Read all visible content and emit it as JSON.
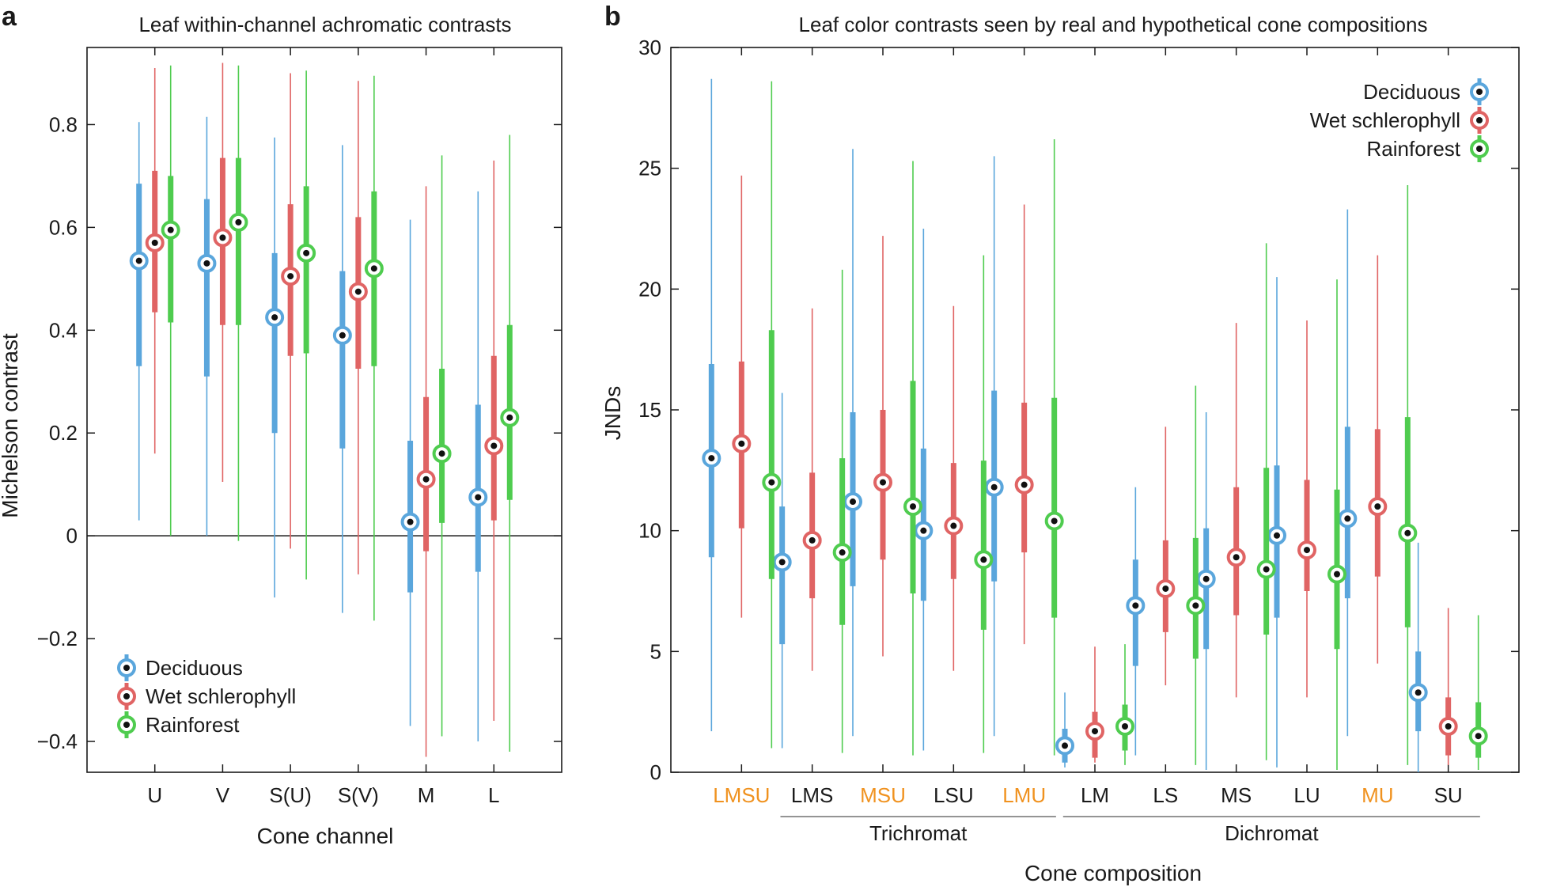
{
  "panels": {
    "a": "a",
    "b": "b"
  },
  "colors": {
    "Deciduous": "#5aa6dc",
    "Wet schlerophyll": "#e06464",
    "Rainforest": "#4fcc4f",
    "orange_label": "#f0921f"
  },
  "chart_data": [
    {
      "type": "box",
      "panel": "a",
      "title": "Leaf within-channel achromatic contrasts",
      "xlabel": "Cone channel",
      "ylabel": "Michelson contrast",
      "ylim": [
        -0.46,
        0.95
      ],
      "yticks": [
        -0.4,
        -0.2,
        0,
        0.2,
        0.4,
        0.6,
        0.8
      ],
      "ytick_labels": [
        "−0.4",
        "−0.2",
        "0",
        "0.2",
        "0.4",
        "0.6",
        "0.8"
      ],
      "zero_line": true,
      "categories": [
        "U",
        "V",
        "S(U)",
        "S(V)",
        "M",
        "L"
      ],
      "legend": {
        "position": "bottom-left",
        "entries": [
          "Deciduous",
          "Wet schlerophyll",
          "Rainforest"
        ]
      },
      "series": [
        {
          "name": "Deciduous",
          "median": [
            0.535,
            0.53,
            0.425,
            0.39,
            0.027,
            0.075
          ],
          "q1": [
            0.33,
            0.31,
            0.2,
            0.17,
            -0.11,
            -0.07
          ],
          "q3": [
            0.685,
            0.655,
            0.55,
            0.515,
            0.185,
            0.255
          ],
          "min": [
            0.03,
            0.0,
            -0.12,
            -0.15,
            -0.37,
            -0.4
          ],
          "max": [
            0.805,
            0.815,
            0.775,
            0.76,
            0.615,
            0.67
          ]
        },
        {
          "name": "Wet schlerophyll",
          "median": [
            0.57,
            0.58,
            0.505,
            0.475,
            0.11,
            0.175
          ],
          "q1": [
            0.435,
            0.41,
            0.35,
            0.325,
            -0.03,
            0.03
          ],
          "q3": [
            0.71,
            0.735,
            0.645,
            0.62,
            0.27,
            0.35
          ],
          "min": [
            0.16,
            0.105,
            -0.025,
            -0.075,
            -0.43,
            -0.36
          ],
          "max": [
            0.91,
            0.92,
            0.9,
            0.885,
            0.68,
            0.73
          ]
        },
        {
          "name": "Rainforest",
          "median": [
            0.595,
            0.61,
            0.55,
            0.52,
            0.16,
            0.23
          ],
          "q1": [
            0.415,
            0.41,
            0.355,
            0.33,
            0.025,
            0.07
          ],
          "q3": [
            0.7,
            0.735,
            0.68,
            0.67,
            0.325,
            0.41
          ],
          "min": [
            0.0,
            -0.01,
            -0.085,
            -0.165,
            -0.39,
            -0.42
          ],
          "max": [
            0.915,
            0.915,
            0.905,
            0.895,
            0.74,
            0.78
          ]
        }
      ]
    },
    {
      "type": "box",
      "panel": "b",
      "title": "Leaf color contrasts seen by real and hypothetical cone compositions",
      "xlabel": "Cone composition",
      "ylabel": "JNDs",
      "ylim": [
        0,
        30
      ],
      "yticks": [
        0,
        5,
        10,
        15,
        20,
        25,
        30
      ],
      "ytick_labels": [
        "0",
        "5",
        "10",
        "15",
        "20",
        "25",
        "30"
      ],
      "categories": [
        "LMSU",
        "LMS",
        "MSU",
        "LSU",
        "LMU",
        "LM",
        "LS",
        "MS",
        "LU",
        "MU",
        "SU"
      ],
      "highlighted_categories": [
        "LMSU",
        "MSU",
        "LMU",
        "MU"
      ],
      "groups": [
        {
          "label": "Trichromat",
          "from": "LMS",
          "to": "LMU"
        },
        {
          "label": "Dichromat",
          "from": "LM",
          "to": "SU"
        }
      ],
      "legend": {
        "position": "top-right",
        "entries": [
          "Deciduous",
          "Wet schlerophyll",
          "Rainforest"
        ]
      },
      "series": [
        {
          "name": "Deciduous",
          "median": [
            13.0,
            8.7,
            11.2,
            10.0,
            11.8,
            1.1,
            6.9,
            8.0,
            9.8,
            10.5,
            3.3
          ],
          "q1": [
            8.9,
            5.3,
            7.7,
            7.1,
            7.9,
            0.4,
            4.4,
            5.1,
            6.4,
            7.2,
            1.7
          ],
          "q3": [
            16.9,
            11.0,
            14.9,
            13.4,
            15.8,
            1.8,
            8.8,
            10.1,
            12.7,
            14.3,
            5.0
          ],
          "min": [
            1.7,
            1.0,
            1.5,
            0.9,
            1.5,
            0.2,
            0.7,
            0.1,
            0.2,
            1.5,
            0.0
          ],
          "max": [
            28.7,
            15.7,
            25.8,
            22.5,
            25.5,
            3.3,
            11.8,
            14.9,
            20.5,
            23.3,
            9.5
          ]
        },
        {
          "name": "Wet schlerophyll",
          "median": [
            13.6,
            9.6,
            12.0,
            10.2,
            11.9,
            1.7,
            7.6,
            8.9,
            9.2,
            11.0,
            1.9
          ],
          "q1": [
            10.1,
            7.2,
            8.8,
            8.0,
            9.1,
            0.6,
            5.8,
            6.5,
            7.5,
            8.1,
            0.7
          ],
          "q3": [
            17.0,
            12.4,
            15.0,
            12.8,
            15.3,
            2.5,
            9.6,
            11.8,
            12.1,
            14.2,
            3.1
          ],
          "min": [
            6.4,
            4.2,
            4.8,
            4.2,
            5.3,
            0.4,
            3.6,
            3.1,
            3.1,
            4.5,
            0.3
          ],
          "max": [
            24.7,
            19.2,
            22.2,
            19.3,
            23.5,
            5.2,
            14.3,
            18.6,
            18.7,
            21.4,
            6.8
          ]
        },
        {
          "name": "Rainforest",
          "median": [
            12.0,
            9.1,
            11.0,
            8.8,
            10.4,
            1.9,
            6.9,
            8.4,
            8.2,
            9.9,
            1.5
          ],
          "q1": [
            8.0,
            6.1,
            7.4,
            5.9,
            6.4,
            0.9,
            4.7,
            5.7,
            5.1,
            6.0,
            0.6
          ],
          "q3": [
            18.3,
            13.0,
            16.2,
            12.9,
            15.5,
            2.8,
            9.7,
            12.6,
            11.7,
            14.7,
            2.9
          ],
          "min": [
            1.0,
            0.8,
            0.7,
            0.8,
            0.7,
            0.3,
            0.3,
            0.5,
            0.1,
            0.3,
            0.1
          ],
          "max": [
            28.6,
            20.8,
            25.3,
            21.4,
            26.2,
            5.3,
            16.0,
            21.9,
            20.4,
            24.3,
            6.5
          ]
        }
      ]
    }
  ]
}
